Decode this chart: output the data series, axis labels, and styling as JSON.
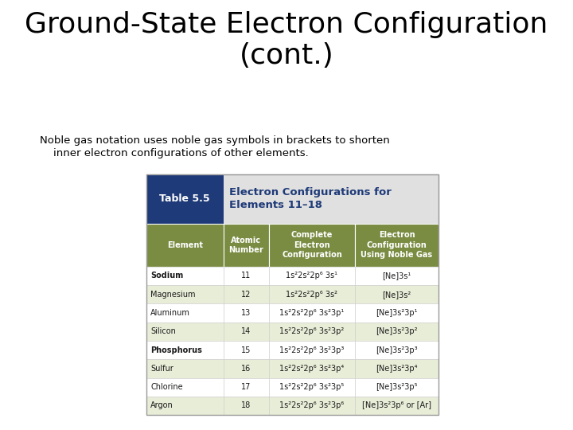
{
  "title": "Ground-State Electron Configuration\n(cont.)",
  "subtitle_line1": "Noble gas notation uses noble gas symbols in brackets to shorten",
  "subtitle_line2": "    inner electron configurations of other elements.",
  "table_title_label": "Table 5.5",
  "table_title_header": "Electron Configurations for\nElements 11–18",
  "col_headers": [
    "Element",
    "Atomic\nNumber",
    "Complete\nElectron\nConfiguration",
    "Electron\nConfiguration\nUsing Noble Gas"
  ],
  "rows": [
    [
      "Sodium",
      "11",
      "1s²2s²2p⁶ 3s¹",
      "[Ne]3s¹"
    ],
    [
      "Magnesium",
      "12",
      "1s²2s²2p⁶ 3s²",
      "[Ne]3s²"
    ],
    [
      "Aluminum",
      "13",
      "1s²2s²2p⁶ 3s²3p¹",
      "[Ne]3s²3p¹"
    ],
    [
      "Silicon",
      "14",
      "1s²2s²2p⁶ 3s²3p²",
      "[Ne]3s²3p²"
    ],
    [
      "Phosphorus",
      "15",
      "1s²2s²2p⁶ 3s²3p³",
      "[Ne]3s²3p³"
    ],
    [
      "Sulfur",
      "16",
      "1s²2s²2p⁶ 3s²3p⁴",
      "[Ne]3s²3p⁴"
    ],
    [
      "Chlorine",
      "17",
      "1s²2s²2p⁶ 3s²3p⁵",
      "[Ne]3s²3p⁵"
    ],
    [
      "Argon",
      "18",
      "1s²2s²2p⁶ 3s²3p⁶",
      "[Ne]3s²3p⁶ or [Ar]"
    ]
  ],
  "color_dark_blue": "#1e3a78",
  "color_title_blue": "#1e3a78",
  "color_header_light_bg": "#dde3cc",
  "color_olive_green": "#6b7c3a",
  "color_light_green_even": "#e8edd8",
  "color_white": "#ffffff",
  "color_header_green": "#7a8c42",
  "color_header_text": "#ffffff",
  "color_table_top_bg": "#e8e8e8",
  "color_table_label_bg": "#1e3a78",
  "color_table_label_text": "#ffffff",
  "color_title_text": "#000000",
  "bg_color": "#ffffff",
  "row_bold": [
    1,
    5
  ]
}
